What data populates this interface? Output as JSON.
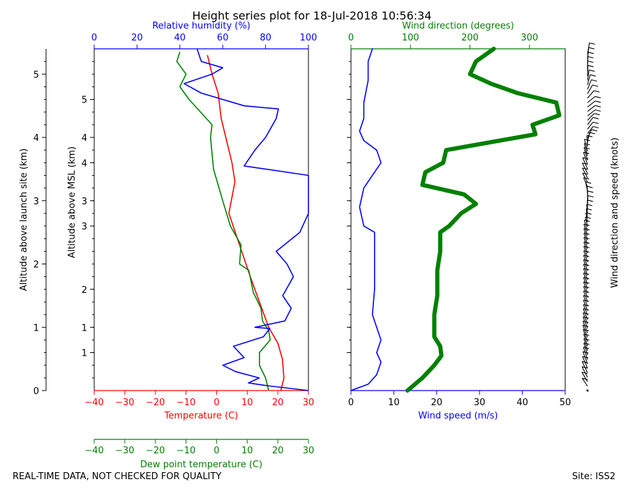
{
  "title": "Height series plot for 18-Jul-2018 10:56:34",
  "footer": {
    "left": "REAL-TIME DATA, NOT CHECKED FOR QUALITY",
    "right": "Site: ISS2"
  },
  "colors": {
    "temperature": "#ff0000",
    "dewpoint": "#008000",
    "rh": "#0000ff",
    "wind_speed": "#0000ff",
    "wind_dir": "#008000",
    "barbs": "#000000",
    "axis": "#000000"
  },
  "chart_data": [
    {
      "type": "line",
      "name": "thermo-panel",
      "outer_ylabel": "Altitude above launch site (km)",
      "outer_yticks": [
        "0",
        "1",
        "2",
        "3",
        "4",
        "5"
      ],
      "outer_ylim": [
        0,
        5.4
      ],
      "ylabel": "Altitude above MSL (km)",
      "yticks_labels": [
        "1",
        "1",
        "2",
        "3",
        "3",
        "4",
        "4",
        "5"
      ],
      "yticks_values": [
        0.6,
        1.0,
        1.6,
        2.6,
        3.0,
        3.6,
        4.0,
        4.6
      ],
      "xaxes": {
        "temperature": {
          "label": "Temperature (C)",
          "ticks": [
            -40,
            -30,
            -20,
            -10,
            0,
            10,
            20,
            30
          ],
          "lim": [
            -40,
            30
          ]
        },
        "humidity": {
          "label": "Relative humidity (%)",
          "ticks": [
            0,
            20,
            40,
            60,
            80,
            100
          ],
          "lim": [
            0,
            100
          ]
        },
        "dewpoint": {
          "label": "Dew point temperature (C)",
          "ticks": [
            -40,
            -30,
            -20,
            -10,
            0,
            10,
            20,
            30
          ],
          "lim": [
            -40,
            30
          ]
        }
      },
      "series": [
        {
          "name": "Temperature",
          "axis": "temperature",
          "points": [
            [
              21,
              0.0
            ],
            [
              22,
              0.2
            ],
            [
              21.5,
              0.5
            ],
            [
              20,
              0.75
            ],
            [
              17,
              1.0
            ],
            [
              14,
              1.4
            ],
            [
              11,
              1.8
            ],
            [
              7.5,
              2.3
            ],
            [
              4,
              2.8
            ],
            [
              6,
              3.3
            ],
            [
              5,
              3.6
            ],
            [
              3,
              4.0
            ],
            [
              1.5,
              4.3
            ],
            [
              0.5,
              4.7
            ],
            [
              -1.5,
              5.0
            ],
            [
              -3,
              5.3
            ]
          ]
        },
        {
          "name": "Dew point",
          "axis": "dewpoint",
          "points": [
            [
              17,
              0.0
            ],
            [
              16,
              0.2
            ],
            [
              14,
              0.4
            ],
            [
              14,
              0.6
            ],
            [
              17.5,
              0.8
            ],
            [
              17,
              0.95
            ],
            [
              15,
              1.1
            ],
            [
              14.5,
              1.3
            ],
            [
              12,
              1.55
            ],
            [
              10.5,
              1.9
            ],
            [
              7.5,
              2.0
            ],
            [
              8,
              2.3
            ],
            [
              4.5,
              2.6
            ],
            [
              2,
              3.0
            ],
            [
              -1,
              3.5
            ],
            [
              -2,
              4.0
            ],
            [
              -1.5,
              4.2
            ],
            [
              -9,
              4.6
            ],
            [
              -12,
              4.8
            ],
            [
              -10,
              5.0
            ],
            [
              -13,
              5.2
            ],
            [
              -12,
              5.35
            ]
          ]
        },
        {
          "name": "Relative humidity",
          "axis": "humidity",
          "points": [
            [
              100,
              0.0
            ],
            [
              80,
              0.08
            ],
            [
              72,
              0.12
            ],
            [
              77,
              0.2
            ],
            [
              66,
              0.3
            ],
            [
              60,
              0.4
            ],
            [
              70,
              0.52
            ],
            [
              65,
              0.7
            ],
            [
              79,
              0.85
            ],
            [
              82,
              0.98
            ],
            [
              75,
              1.0
            ],
            [
              89,
              1.1
            ],
            [
              92,
              1.3
            ],
            [
              88,
              1.5
            ],
            [
              93,
              1.8
            ],
            [
              90,
              2.0
            ],
            [
              85,
              2.2
            ],
            [
              96,
              2.5
            ],
            [
              100,
              2.8
            ],
            [
              100,
              3.0
            ],
            [
              100,
              3.4
            ],
            [
              70,
              3.55
            ],
            [
              75,
              3.8
            ],
            [
              80,
              4.0
            ],
            [
              85,
              4.3
            ],
            [
              86,
              4.45
            ],
            [
              70,
              4.5
            ],
            [
              50,
              4.7
            ],
            [
              42,
              4.85
            ],
            [
              55,
              5.0
            ],
            [
              60,
              5.1
            ],
            [
              50,
              5.2
            ],
            [
              48,
              5.4
            ]
          ]
        }
      ]
    },
    {
      "type": "line",
      "name": "wind-panel",
      "ylim": [
        0,
        5.4
      ],
      "xaxes": {
        "speed": {
          "label": "Wind speed (m/s)",
          "ticks": [
            0,
            10,
            20,
            30,
            40,
            50
          ],
          "lim": [
            0,
            50
          ]
        },
        "direction": {
          "label": "Wind direction (degrees)",
          "ticks": [
            0,
            100,
            200,
            300
          ],
          "lim": [
            0,
            360
          ]
        }
      },
      "series": [
        {
          "name": "Wind speed",
          "axis": "speed",
          "points": [
            [
              0,
              0.0
            ],
            [
              4,
              0.1
            ],
            [
              6,
              0.25
            ],
            [
              7,
              0.45
            ],
            [
              6,
              0.6
            ],
            [
              7,
              0.8
            ],
            [
              6,
              1.0
            ],
            [
              5,
              1.2
            ],
            [
              5.5,
              1.6
            ],
            [
              5.5,
              2.2
            ],
            [
              5.5,
              2.5
            ],
            [
              3,
              2.6
            ],
            [
              2,
              2.9
            ],
            [
              3,
              3.2
            ],
            [
              5,
              3.4
            ],
            [
              7,
              3.6
            ],
            [
              6,
              3.8
            ],
            [
              3,
              3.95
            ],
            [
              2,
              4.1
            ],
            [
              3,
              4.3
            ],
            [
              3,
              4.55
            ],
            [
              4,
              4.9
            ],
            [
              4,
              5.2
            ],
            [
              5,
              5.4
            ]
          ]
        },
        {
          "name": "Wind direction",
          "axis": "direction",
          "points": [
            [
              95,
              0.0
            ],
            [
              120,
              0.2
            ],
            [
              140,
              0.4
            ],
            [
              152,
              0.55
            ],
            [
              150,
              0.7
            ],
            [
              140,
              0.85
            ],
            [
              140,
              1.0
            ],
            [
              140,
              1.2
            ],
            [
              145,
              1.5
            ],
            [
              145,
              1.9
            ],
            [
              150,
              2.2
            ],
            [
              150,
              2.5
            ],
            [
              165,
              2.6
            ],
            [
              185,
              2.8
            ],
            [
              210,
              2.95
            ],
            [
              190,
              3.1
            ],
            [
              120,
              3.25
            ],
            [
              125,
              3.45
            ],
            [
              155,
              3.6
            ],
            [
              160,
              3.8
            ],
            [
              250,
              3.95
            ],
            [
              310,
              4.05
            ],
            [
              305,
              4.2
            ],
            [
              350,
              4.35
            ],
            [
              345,
              4.55
            ],
            [
              280,
              4.7
            ],
            [
              235,
              4.85
            ],
            [
              200,
              5.0
            ],
            [
              210,
              5.2
            ],
            [
              240,
              5.4
            ]
          ]
        }
      ]
    }
  ],
  "barb_axis": {
    "ylabel": "Wind direction and speed (knots)"
  }
}
